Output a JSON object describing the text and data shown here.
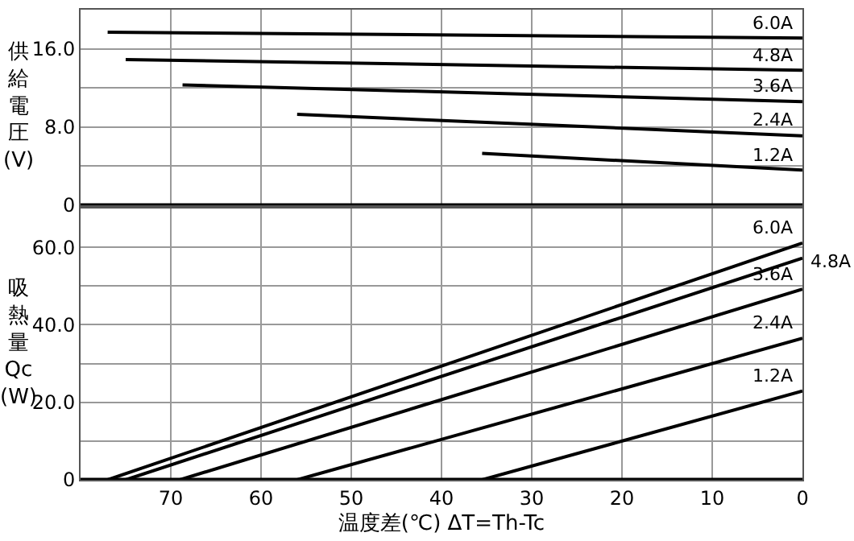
{
  "chart_data": [
    {
      "type": "line",
      "ylabel": "供給電圧(V)",
      "xlim": [
        80,
        0
      ],
      "xticks": [
        {
          "value": 70,
          "label": null
        },
        {
          "value": 60,
          "label": null
        },
        {
          "value": 50,
          "label": null
        },
        {
          "value": 40,
          "label": null
        },
        {
          "value": 30,
          "label": null
        },
        {
          "value": 20,
          "label": null
        },
        {
          "value": 10,
          "label": null
        }
      ],
      "ylim": [
        0,
        20
      ],
      "yticks": [
        0,
        {
          "value": 4,
          "label": null
        },
        {
          "value": 8,
          "label": "8.0"
        },
        {
          "value": 12,
          "label": null
        },
        {
          "value": 16,
          "label": "16.0"
        }
      ],
      "grid": true,
      "legend": false,
      "tick_labels": "y",
      "marker": "none",
      "line_style": "solid",
      "series": [
        {
          "name": "6.0A",
          "color": "#000000",
          "x": [
            77,
            0
          ],
          "values": [
            17.7,
            17.1
          ]
        },
        {
          "name": "4.8A",
          "color": "#000000",
          "x": [
            75,
            0
          ],
          "values": [
            14.9,
            13.8
          ]
        },
        {
          "name": "3.6A",
          "color": "#000000",
          "x": [
            68.7,
            0
          ],
          "values": [
            12.3,
            10.6
          ]
        },
        {
          "name": "2.4A",
          "color": "#000000",
          "x": [
            56,
            0
          ],
          "values": [
            9.3,
            7.1
          ]
        },
        {
          "name": "1.2A",
          "color": "#000000",
          "x": [
            35.5,
            0
          ],
          "values": [
            5.3,
            3.6
          ]
        }
      ]
    },
    {
      "type": "line",
      "xlabel": "温度差(℃) ΔT=Th-Tc",
      "ylabel": "吸熱量Qc(W)",
      "xlim": [
        80,
        0
      ],
      "xticks": [
        70,
        60,
        50,
        40,
        30,
        20,
        10,
        0
      ],
      "ylim": [
        0,
        70
      ],
      "yticks": [
        0,
        {
          "value": 10,
          "label": null
        },
        {
          "value": 20,
          "label": "20.0"
        },
        {
          "value": 30,
          "label": null
        },
        {
          "value": 40,
          "label": "40.0"
        },
        {
          "value": 50,
          "label": null
        },
        {
          "value": 60,
          "label": "60.0"
        }
      ],
      "grid": true,
      "legend": false,
      "marker": "none",
      "line_style": "solid",
      "series": [
        {
          "name": "6.0A",
          "color": "#000000",
          "x": [
            77,
            0
          ],
          "values": [
            0,
            61.1
          ]
        },
        {
          "name": "4.8A",
          "color": "#000000",
          "x": [
            75,
            0
          ],
          "values": [
            0,
            57.2
          ]
        },
        {
          "name": "3.6A",
          "color": "#000000",
          "x": [
            69,
            0
          ],
          "values": [
            0,
            49.2
          ]
        },
        {
          "name": "2.4A",
          "color": "#000000",
          "x": [
            56,
            0
          ],
          "values": [
            0,
            36.5
          ]
        },
        {
          "name": "1.2A",
          "color": "#000000",
          "x": [
            35.5,
            0
          ],
          "values": [
            0,
            22.9
          ]
        }
      ]
    }
  ]
}
